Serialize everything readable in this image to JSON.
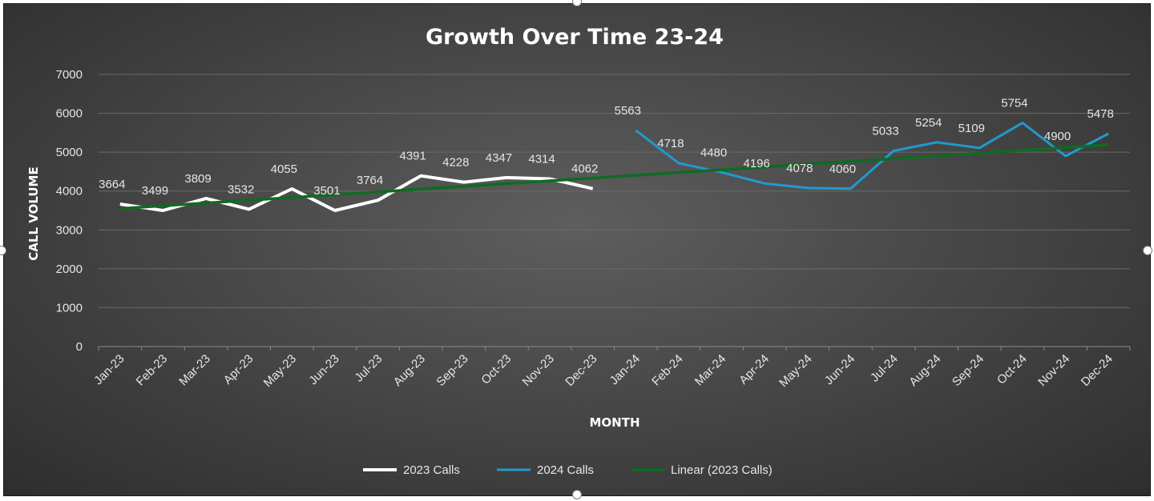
{
  "chart_data": {
    "type": "line",
    "title": "Growth Over Time 23-24",
    "xlabel": "MONTH",
    "ylabel": "CALL VOLUME",
    "ylim": [
      0,
      7000
    ],
    "yticks": [
      0,
      1000,
      2000,
      3000,
      4000,
      5000,
      6000,
      7000
    ],
    "grid": true,
    "legend_position": "bottom",
    "categories": [
      "Jan-23",
      "Feb-23",
      "Mar-23",
      "Apr-23",
      "May-23",
      "Jun-23",
      "Jul-23",
      "Aug-23",
      "Sep-23",
      "Oct-23",
      "Nov-23",
      "Dec-23",
      "Jan-24",
      "Feb-24",
      "Mar-24",
      "Apr-24",
      "May-24",
      "Jun-24",
      "Jul-24",
      "Aug-24",
      "Sep-24",
      "Oct-24",
      "Nov-24",
      "Dec-24"
    ],
    "series": [
      {
        "name": "2023 Calls",
        "color": "#ffffff",
        "values": [
          3664,
          3499,
          3809,
          3532,
          4055,
          3501,
          3764,
          4391,
          4228,
          4347,
          4314,
          4062,
          null,
          null,
          null,
          null,
          null,
          null,
          null,
          null,
          null,
          null,
          null,
          null
        ]
      },
      {
        "name": "2024 Calls",
        "color": "#1f9bcf",
        "values": [
          null,
          null,
          null,
          null,
          null,
          null,
          null,
          null,
          null,
          null,
          null,
          null,
          5563,
          4718,
          4480,
          4196,
          4078,
          4060,
          5033,
          5254,
          5109,
          5754,
          4900,
          5478
        ]
      },
      {
        "name": "Linear (2023 Calls)",
        "color": "#0f6b22",
        "type": "trendline",
        "start": 3550,
        "end": 5190
      }
    ]
  }
}
